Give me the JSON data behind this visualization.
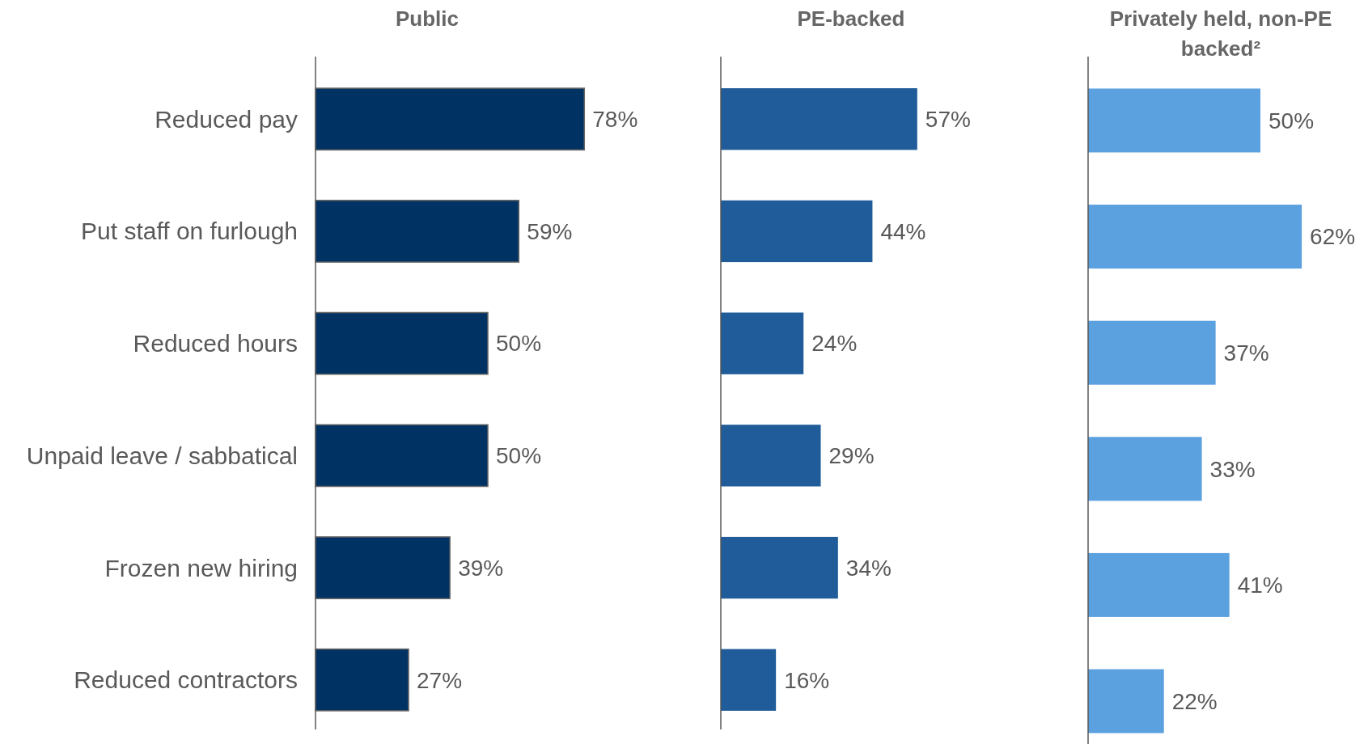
{
  "chart_data": [
    {
      "type": "bar",
      "orientation": "horizontal",
      "title": "Public",
      "categories": [
        "Reduced pay",
        "Put staff on furlough",
        "Reduced hours",
        "Unpaid leave / sabbatical",
        "Frozen new hiring",
        "Reduced contractors"
      ],
      "series": [
        {
          "color": "#003263",
          "values": [
            78,
            59,
            50,
            50,
            39,
            27
          ],
          "value_labels": [
            "78%",
            "59%",
            "50%",
            "50%",
            "39%",
            "27%"
          ]
        }
      ],
      "tick_labels": "y"
    },
    {
      "type": "bar",
      "orientation": "horizontal",
      "title": "PE-backed",
      "categories": [
        null,
        null,
        null,
        null,
        null,
        null
      ],
      "series": [
        {
          "color": "#1f5c99",
          "values": [
            57,
            44,
            24,
            29,
            34,
            16
          ],
          "value_labels": [
            "57%",
            "44%",
            "24%",
            "29%",
            "34%",
            "16%"
          ]
        }
      ],
      "tick_labels": false
    },
    {
      "type": "bar",
      "orientation": "horizontal",
      "title": "Privately held, non-PE backed²",
      "categories": [
        null,
        null,
        null,
        null,
        null,
        null
      ],
      "series": [
        {
          "color": "#5ba0df",
          "values": [
            50,
            62,
            37,
            33,
            41,
            22
          ],
          "value_labels": [
            "50%",
            "62%",
            "37%",
            "33%",
            "41%",
            "22%"
          ]
        }
      ],
      "tick_labels": false
    }
  ]
}
